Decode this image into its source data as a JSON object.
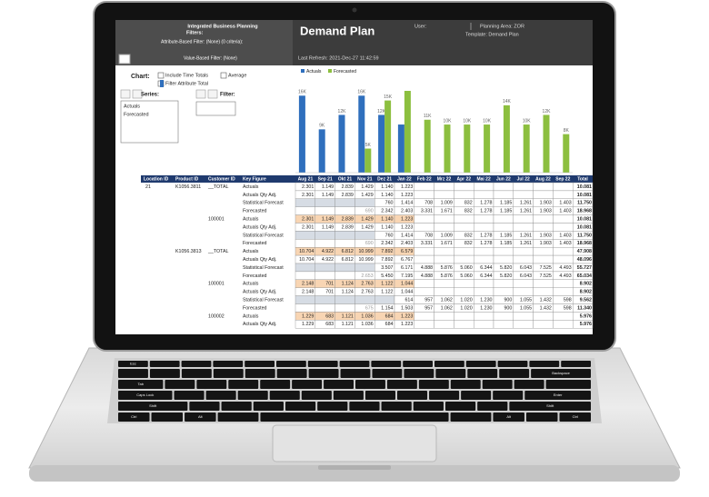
{
  "header": {
    "app": "Integrated Business Planning",
    "filters": "Filters:",
    "attribute_filter": "Attribute-Based Filter: (None) (0 criteria):",
    "value_filter": "Value-Based Filter: (None)",
    "title": "Demand Plan",
    "last_refresh": "Last Refresh: 2021-Dec-27   11:42:59",
    "user": "User:",
    "planning_area": "Planning Area: ZOR",
    "template": "Template: Demand Plan"
  },
  "controls": {
    "chart": "Chart:",
    "include_time_totals": "Include Time Totals",
    "average": "Average",
    "filter_attribute_total": "Filter Attribute Total",
    "series": "Series:",
    "filter": "Filter:",
    "series_items": [
      "Actuals",
      "Forecasted"
    ]
  },
  "chart": {
    "type": "bar",
    "series": [
      {
        "name": "Actuals",
        "color": "#2f6fbd",
        "values": [
          16000,
          9000,
          12000,
          16000,
          12000,
          10000,
          null,
          null,
          null,
          null,
          null,
          null,
          null,
          null
        ],
        "value_labels": [
          "16K",
          "9K",
          "12K",
          "16K",
          "12K",
          null,
          null,
          null,
          null,
          null,
          null,
          null,
          null,
          null
        ]
      },
      {
        "name": "Forecasted",
        "color": "#8cbf3f",
        "values": [
          null,
          null,
          null,
          5000,
          15000,
          17000,
          11000,
          10000,
          10000,
          10000,
          14000,
          10000,
          12000,
          8000
        ],
        "value_labels": [
          null,
          null,
          null,
          "5K",
          "15K",
          null,
          "11K",
          "10K",
          "10K",
          "10K",
          "14K",
          "10K",
          "12K",
          "8K"
        ]
      }
    ]
  },
  "table": {
    "columns": [
      "Location ID",
      "Product ID",
      "Customer ID",
      "Key Figure",
      "Aug 21",
      "Sep 21",
      "Okt 21",
      "Nov 21",
      "Dez 21",
      "Jan 22",
      "Feb 22",
      "Mrz 22",
      "Apr 22",
      "Mai 22",
      "Jun 22",
      "Jul 22",
      "Aug 22",
      "Sep 22",
      "Total"
    ],
    "rows": [
      {
        "location": "21",
        "product": "K1056.3811",
        "customer": "__TOTAL",
        "key_figure": "Actuals",
        "cells": [
          "2.301",
          "1.149",
          "2.839",
          "1.429",
          "1.140",
          "1.223",
          null,
          null,
          null,
          null,
          null,
          null,
          null,
          null
        ],
        "total": "10.081"
      },
      {
        "location": null,
        "product": null,
        "customer": null,
        "key_figure": "Actuals Qty Adj.",
        "cells": [
          "2.301",
          "1.149",
          "2.839",
          "1.429",
          "1.140",
          "1.223",
          null,
          null,
          null,
          null,
          null,
          null,
          null,
          null
        ],
        "total": "10.081"
      },
      {
        "location": null,
        "product": null,
        "customer": null,
        "key_figure": "Statistical Forecast",
        "cells": [
          null,
          null,
          null,
          null,
          "760",
          "1.414",
          "708",
          "1.009",
          "832",
          "1.278",
          "1.185",
          "1.261",
          "1.903",
          "1.403"
        ],
        "total": "11.750"
      },
      {
        "location": null,
        "product": null,
        "customer": null,
        "key_figure": "Forecasted",
        "cells": [
          null,
          null,
          null,
          "690",
          "2.342",
          "2.403",
          "3.331",
          "1.671",
          "832",
          "1.278",
          "1.185",
          "1.261",
          "1.903",
          "1.403"
        ],
        "total": "18.968"
      },
      {
        "location": null,
        "product": null,
        "customer": "100001",
        "key_figure": "Actuals",
        "cells": [
          "2.301",
          "1.149",
          "2.839",
          "1.429",
          "1.140",
          "1.223",
          null,
          null,
          null,
          null,
          null,
          null,
          null,
          null
        ],
        "total": "10.081"
      },
      {
        "location": null,
        "product": null,
        "customer": null,
        "key_figure": "Actuals Qty Adj.",
        "cells": [
          "2.301",
          "1.149",
          "2.839",
          "1.429",
          "1.140",
          "1.223",
          null,
          null,
          null,
          null,
          null,
          null,
          null,
          null
        ],
        "total": "10.081"
      },
      {
        "location": null,
        "product": null,
        "customer": null,
        "key_figure": "Statistical Forecast",
        "cells": [
          null,
          null,
          null,
          null,
          "760",
          "1.414",
          "708",
          "1.009",
          "832",
          "1.278",
          "1.185",
          "1.261",
          "1.903",
          "1.403"
        ],
        "total": "11.750"
      },
      {
        "location": null,
        "product": null,
        "customer": null,
        "key_figure": "Forecasted",
        "cells": [
          null,
          null,
          null,
          "690",
          "2.342",
          "2.403",
          "3.331",
          "1.671",
          "832",
          "1.278",
          "1.185",
          "1.261",
          "1.903",
          "1.403"
        ],
        "total": "18.968"
      },
      {
        "location": null,
        "product": "K1056.3813",
        "customer": "__TOTAL",
        "key_figure": "Actuals",
        "cells": [
          "10.704",
          "4.922",
          "6.812",
          "10.999",
          "7.892",
          "6.579",
          null,
          null,
          null,
          null,
          null,
          null,
          null,
          null
        ],
        "total": "47.908"
      },
      {
        "location": null,
        "product": null,
        "customer": null,
        "key_figure": "Actuals Qty Adj.",
        "cells": [
          "10.704",
          "4.922",
          "6.812",
          "10.999",
          "7.892",
          "6.767",
          null,
          null,
          null,
          null,
          null,
          null,
          null,
          null
        ],
        "total": "48.096"
      },
      {
        "location": null,
        "product": null,
        "customer": null,
        "key_figure": "Statistical Forecast",
        "cells": [
          null,
          null,
          null,
          null,
          "3.507",
          "6.171",
          "4.888",
          "5.876",
          "5.060",
          "6.344",
          "5.820",
          "6.043",
          "7.525",
          "4.493"
        ],
        "total": "55.727"
      },
      {
        "location": null,
        "product": null,
        "customer": null,
        "key_figure": "Forecasted",
        "cells": [
          null,
          null,
          null,
          "2.653",
          "5.450",
          "7.195",
          "4.888",
          "5.876",
          "5.060",
          "6.344",
          "5.820",
          "6.043",
          "7.525",
          "4.493"
        ],
        "total": "65.034"
      },
      {
        "location": null,
        "product": null,
        "customer": "100001",
        "key_figure": "Actuals",
        "cells": [
          "2.148",
          "701",
          "1.124",
          "2.763",
          "1.122",
          "1.044",
          null,
          null,
          null,
          null,
          null,
          null,
          null,
          null
        ],
        "total": "8.902"
      },
      {
        "location": null,
        "product": null,
        "customer": null,
        "key_figure": "Actuals Qty Adj.",
        "cells": [
          "2.148",
          "701",
          "1.124",
          "2.763",
          "1.122",
          "1.044",
          null,
          null,
          null,
          null,
          null,
          null,
          null,
          null
        ],
        "total": "8.902"
      },
      {
        "location": null,
        "product": null,
        "customer": null,
        "key_figure": "Statistical Forecast",
        "cells": [
          null,
          null,
          null,
          null,
          null,
          "614",
          "957",
          "1.062",
          "1.020",
          "1.230",
          "900",
          "1.055",
          "1.432",
          "598"
        ],
        "total": "9.562"
      },
      {
        "location": null,
        "product": null,
        "customer": null,
        "key_figure": "Forecasted",
        "cells": [
          null,
          null,
          null,
          "675",
          "1.154",
          "1.503",
          "957",
          "1.062",
          "1.020",
          "1.230",
          "900",
          "1.055",
          "1.432",
          "598"
        ],
        "total": "11.340"
      },
      {
        "location": null,
        "product": null,
        "customer": "100002",
        "key_figure": "Actuals",
        "cells": [
          "1.229",
          "683",
          "1.121",
          "1.036",
          "684",
          "1.223",
          null,
          null,
          null,
          null,
          null,
          null,
          null,
          null
        ],
        "total": "5.976"
      },
      {
        "location": null,
        "product": null,
        "customer": null,
        "key_figure": "Actuals Qty Adj.",
        "cells": [
          "1.229",
          "683",
          "1.121",
          "1.036",
          "684",
          "1.223",
          null,
          null,
          null,
          null,
          null,
          null,
          null,
          null
        ],
        "total": "5.976"
      }
    ]
  },
  "keyboard": {
    "keys": [
      "Esc",
      "Backspace",
      "Tab",
      "Caps Lock",
      "Enter",
      "Shift",
      "Shift",
      "Ctrl",
      "Alt",
      "Alt",
      "Ctrl"
    ]
  }
}
